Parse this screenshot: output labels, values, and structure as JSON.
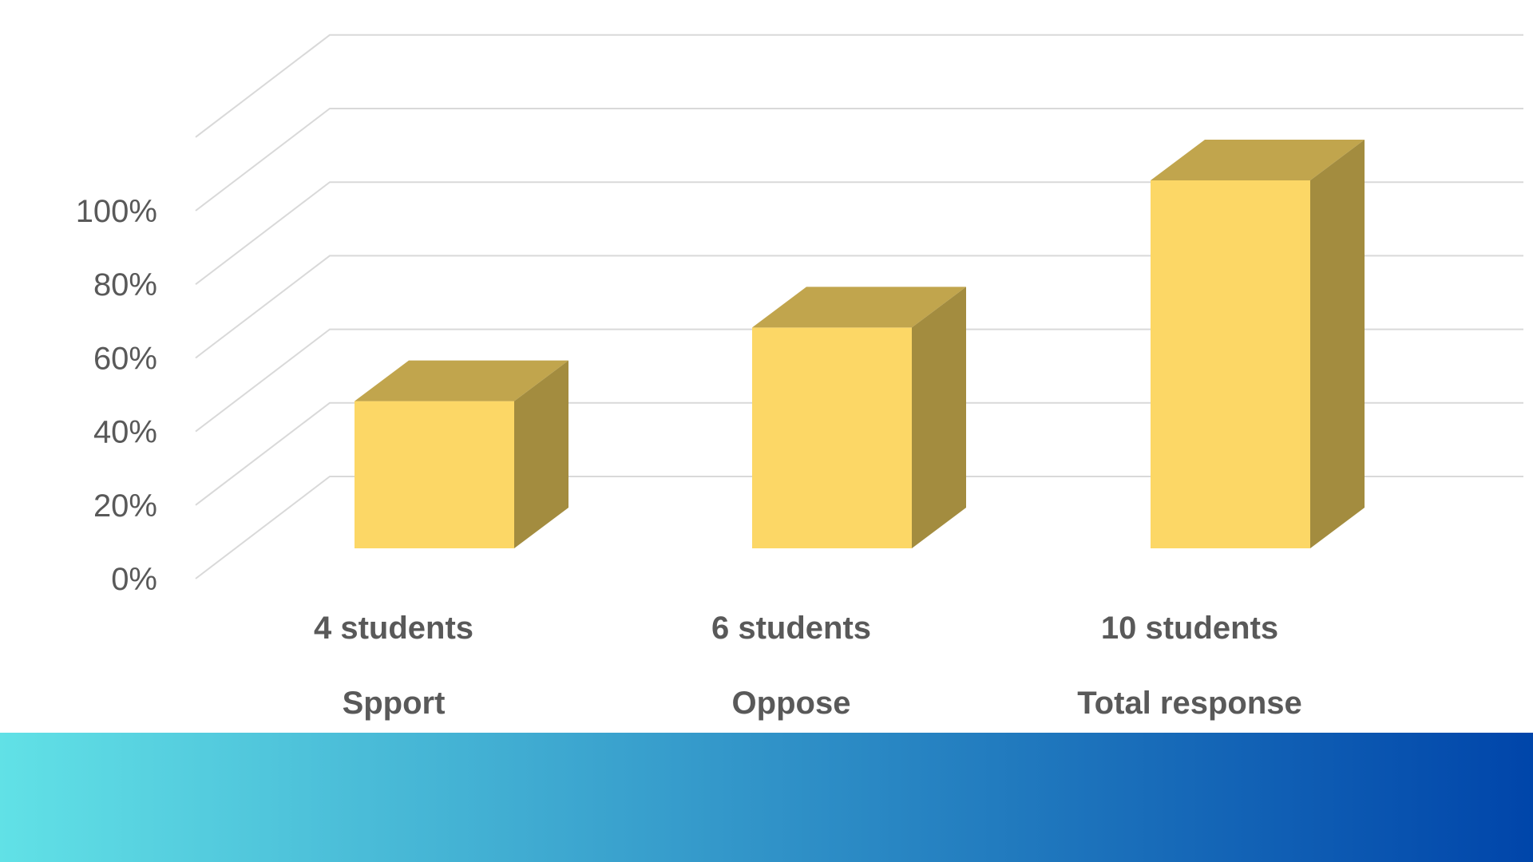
{
  "chart_data": {
    "type": "bar",
    "style": "3d-column",
    "categories": [
      "Spport",
      "Oppose",
      "Total response"
    ],
    "data_labels": [
      "4 students",
      "6 students",
      "10 students"
    ],
    "values": [
      40,
      60,
      100
    ],
    "value_unit": "%",
    "y_ticks": [
      "0%",
      "20%",
      "40%",
      "60%",
      "80%",
      "100%"
    ],
    "ylim": [
      0,
      100
    ],
    "grid": true,
    "legend": "none",
    "title": "",
    "xlabel": "",
    "ylabel": ""
  },
  "colors": {
    "bar_front": "#FCD766",
    "bar_top": "#C1A54D",
    "bar_side": "#A38C3F",
    "grid": "#D9D9D9",
    "text": "#595959",
    "footer_gradient_start": "#61E1E6",
    "footer_gradient_end": "#0045AA"
  }
}
